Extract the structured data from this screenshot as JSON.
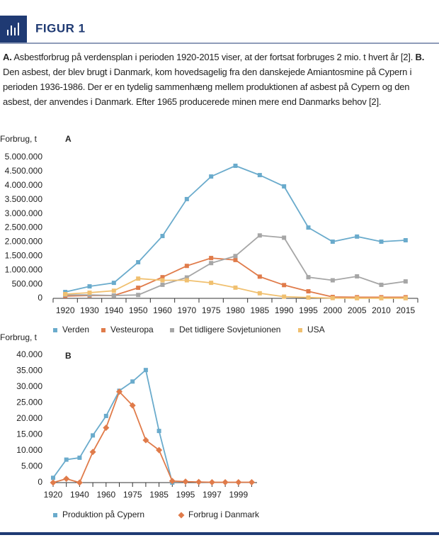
{
  "header": {
    "figure_label": "FIGUR 1"
  },
  "caption": [
    {
      "text": "A.",
      "bold": true
    },
    {
      "text": "Asbestforbrug på verdensplan i perioden 1920-2015 viser, at der fortsat forbruges 2 mio. t hvert år [2].",
      "bold": false
    },
    {
      "text": "B.",
      "bold": true
    },
    {
      "text": "Den asbest, der blev brugt i Danmark, kom hovedsagelig fra den danskejede Amiantosmine på Cypern i perioden 1936-1986. Der er en tydelig sammenhæng mellem produktionen af asbest på Cypern og den asbest, der anvendes i Danmark. Efter 1965 producerede minen mere end Danmarks behov [2].",
      "bold": false
    }
  ],
  "chart_data": [
    {
      "type": "line",
      "label": "A",
      "ylabel": "Forbrug, t",
      "categories": [
        "1920",
        "1930",
        "1940",
        "1950",
        "1960",
        "1970",
        "1975",
        "1980",
        "1985",
        "1990",
        "1995",
        "2000",
        "2005",
        "2010",
        "2015"
      ],
      "series": [
        {
          "name": "Verden",
          "color": "#6aabcc",
          "marker": "square",
          "values": [
            225000,
            425000,
            550000,
            1280000,
            2210000,
            3520000,
            4320000,
            4700000,
            4370000,
            3970000,
            2510000,
            2010000,
            2190000,
            2010000,
            2060000
          ]
        },
        {
          "name": "Vesteuropa",
          "color": "#e07b4a",
          "marker": "square",
          "values": [
            80000,
            100000,
            100000,
            375000,
            750000,
            1150000,
            1430000,
            1360000,
            770000,
            470000,
            250000,
            50000,
            40000,
            40000,
            40000
          ]
        },
        {
          "name": "Det tidligere Sovjetunionen",
          "color": "#a6a6a6",
          "marker": "square",
          "values": [
            120000,
            120000,
            100000,
            120000,
            480000,
            740000,
            1250000,
            1500000,
            2230000,
            2150000,
            750000,
            640000,
            780000,
            480000,
            600000
          ]
        },
        {
          "name": "USA",
          "color": "#f0c070",
          "marker": "square",
          "values": [
            150000,
            200000,
            270000,
            700000,
            640000,
            640000,
            550000,
            380000,
            180000,
            60000,
            30000,
            10000,
            5000,
            5000,
            5000
          ]
        }
      ],
      "ylim": [
        0,
        5000000
      ],
      "yticks": [
        0,
        {
          "value": 500000,
          "label": "500.000"
        },
        {
          "value": 1000000,
          "label": "1.000.000"
        },
        {
          "value": 1500000,
          "label": "1.500.000"
        },
        {
          "value": 2000000,
          "label": "2.000.000"
        },
        {
          "value": 2500000,
          "label": "2.500.000"
        },
        {
          "value": 3000000,
          "label": "3.000.000"
        },
        {
          "value": 3500000,
          "label": "3.500.000"
        },
        {
          "value": 4000000,
          "label": "4.000.000"
        },
        {
          "value": 4500000,
          "label": "4.500.000"
        },
        {
          "value": 5000000,
          "label": "5.000.000"
        }
      ],
      "grid": false
    },
    {
      "type": "line",
      "label": "B",
      "ylabel": "Forbrug, t",
      "categories": [
        "1920",
        null,
        "1940",
        null,
        "1960",
        null,
        "1975",
        null,
        "1985",
        null,
        "1995",
        null,
        "1997",
        null,
        "1999",
        null
      ],
      "series": [
        {
          "name": "Produktion på Cypern",
          "color": "#6aabcc",
          "marker": "square",
          "values": [
            1500,
            7200,
            7800,
            14800,
            20900,
            28800,
            31700,
            35300,
            16200,
            0,
            null,
            null,
            null,
            null,
            null,
            null
          ]
        },
        {
          "name": "Forbrug i Danmark",
          "color": "#e07b4a",
          "marker": "diamond",
          "values": [
            0,
            1200,
            0,
            9600,
            17200,
            28500,
            24200,
            13300,
            10200,
            500,
            300,
            200,
            100,
            100,
            100,
            100
          ]
        }
      ],
      "ylim": [
        0,
        40000
      ],
      "yticks": [
        0,
        {
          "value": 5000,
          "label": "5.000"
        },
        {
          "value": 10000,
          "label": "10.000"
        },
        {
          "value": 15000,
          "label": "15.000"
        },
        {
          "value": 20000,
          "label": "20.000"
        },
        {
          "value": 25000,
          "label": "25.000"
        },
        {
          "value": 30000,
          "label": "30.000"
        },
        {
          "value": 35000,
          "label": "35.000"
        },
        {
          "value": 40000,
          "label": "40.000"
        }
      ],
      "grid": false
    }
  ]
}
